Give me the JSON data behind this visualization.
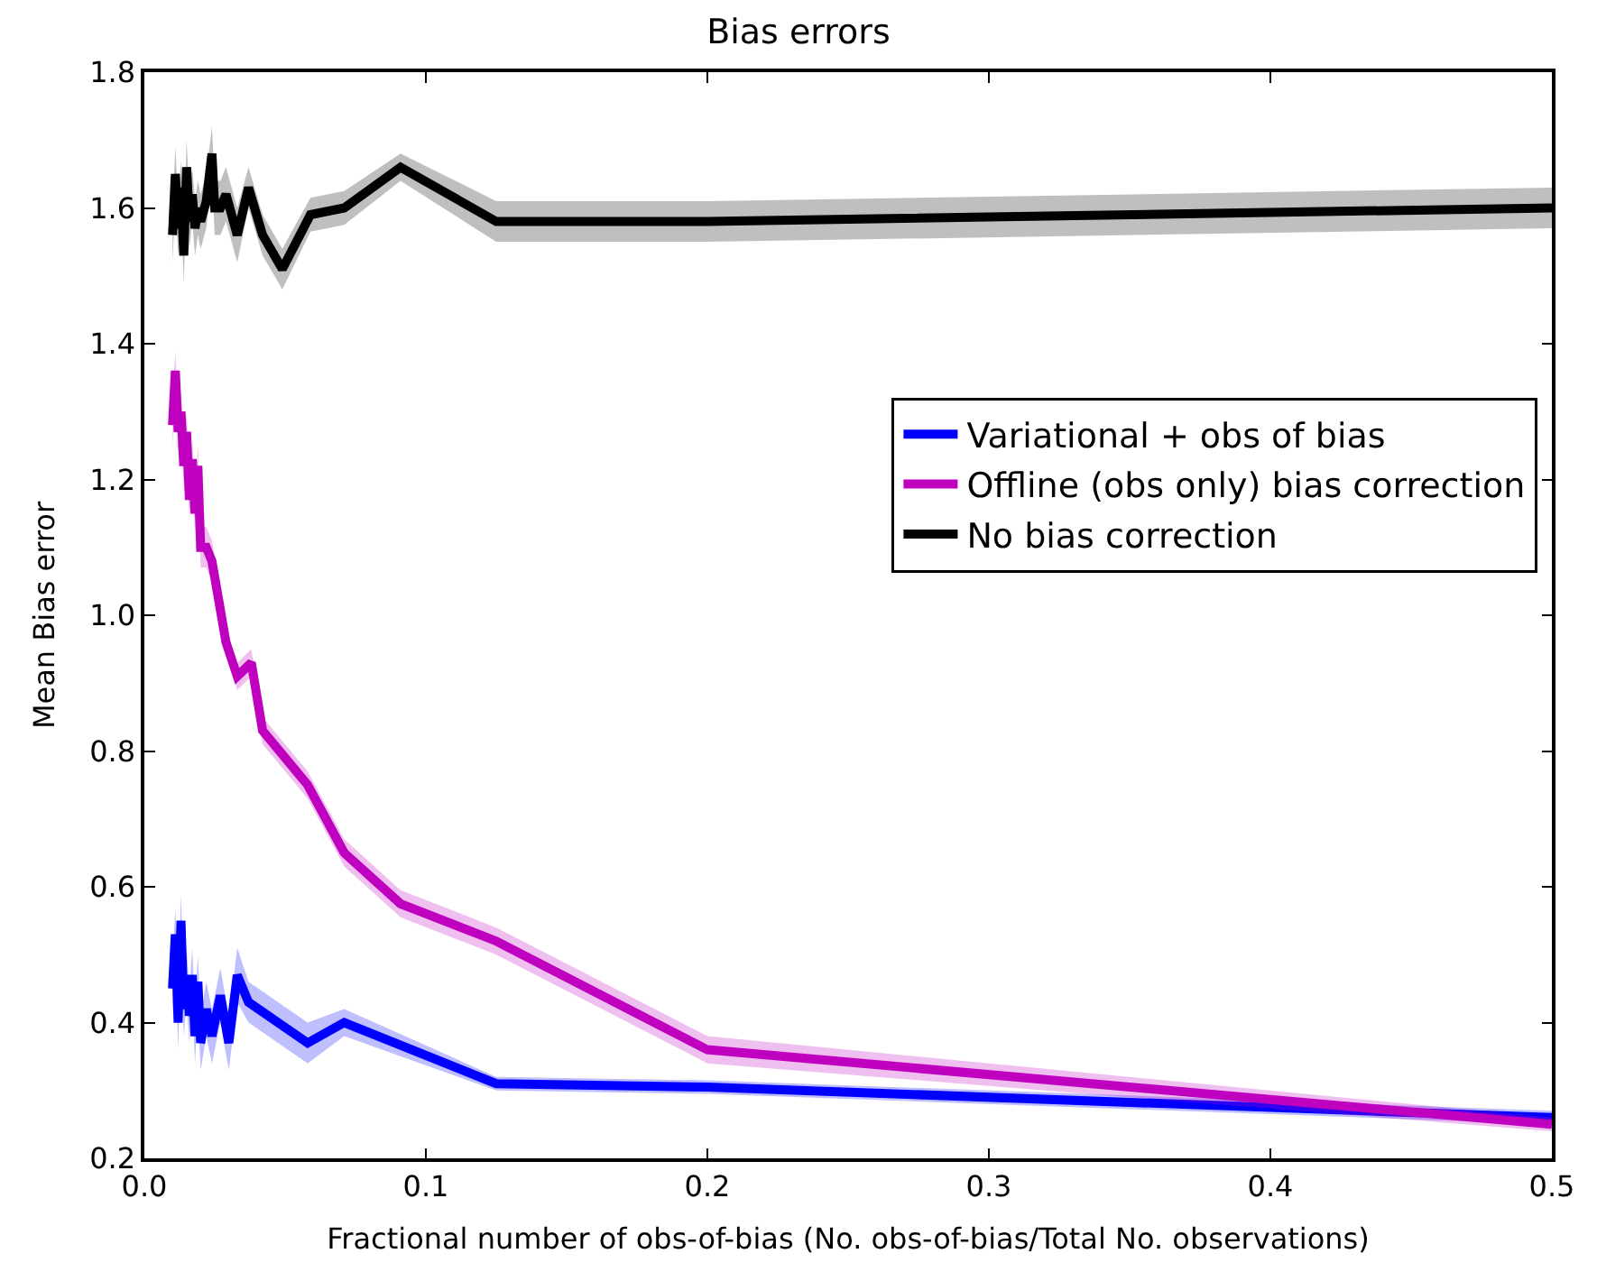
{
  "chart_data": {
    "type": "line",
    "title": "Bias errors",
    "xlabel": "Fractional number of obs-of-bias (No. obs-of-bias/Total No. observations)",
    "ylabel": "Mean Bias error",
    "xlim": [
      0,
      0.5
    ],
    "xticks": [
      {
        "value": 0,
        "label": "0.0"
      },
      {
        "value": 0.1,
        "label": "0.1"
      },
      {
        "value": 0.2,
        "label": "0.2"
      },
      {
        "value": 0.3,
        "label": "0.3"
      },
      {
        "value": 0.4,
        "label": "0.4"
      },
      {
        "value": 0.5,
        "label": "0.5"
      }
    ],
    "ylim": [
      0.2,
      1.8
    ],
    "yticks": [
      {
        "value": 0.2,
        "label": "0.2"
      },
      {
        "value": 0.4,
        "label": "0.4"
      },
      {
        "value": 0.6,
        "label": "0.6"
      },
      {
        "value": 0.8,
        "label": "0.8"
      },
      {
        "value": 1.0,
        "label": "1.0"
      },
      {
        "value": 1.2,
        "label": "1.2"
      },
      {
        "value": 1.4,
        "label": "1.4"
      },
      {
        "value": 1.6,
        "label": "1.6"
      },
      {
        "value": 1.8,
        "label": "1.8"
      }
    ],
    "legend": "right",
    "marker": "none",
    "line_style": "solid",
    "series": [
      {
        "name": "Variational + obs of bias",
        "color": "#0000ff",
        "x": [
          0.01,
          0.011,
          0.012,
          0.013,
          0.014,
          0.015,
          0.016,
          0.017,
          0.018,
          0.019,
          0.02,
          0.022,
          0.024,
          0.027,
          0.03,
          0.033,
          0.037,
          0.058,
          0.071,
          0.125,
          0.2,
          0.5
        ],
        "values": [
          0.45,
          0.53,
          0.4,
          0.55,
          0.42,
          0.47,
          0.41,
          0.47,
          0.38,
          0.46,
          0.37,
          0.42,
          0.38,
          0.44,
          0.37,
          0.47,
          0.43,
          0.37,
          0.4,
          0.31,
          0.305,
          0.26
        ],
        "lower": [
          0.41,
          0.49,
          0.36,
          0.51,
          0.38,
          0.43,
          0.37,
          0.43,
          0.34,
          0.42,
          0.33,
          0.38,
          0.34,
          0.4,
          0.33,
          0.43,
          0.4,
          0.34,
          0.38,
          0.3,
          0.295,
          0.25
        ],
        "upper": [
          0.49,
          0.57,
          0.44,
          0.59,
          0.46,
          0.51,
          0.45,
          0.51,
          0.42,
          0.5,
          0.41,
          0.46,
          0.42,
          0.48,
          0.41,
          0.51,
          0.46,
          0.4,
          0.42,
          0.32,
          0.315,
          0.27
        ]
      },
      {
        "name": "Offline (obs only) bias correction",
        "color": "#bf00bf",
        "x": [
          0.01,
          0.011,
          0.012,
          0.013,
          0.014,
          0.015,
          0.016,
          0.017,
          0.018,
          0.019,
          0.02,
          0.022,
          0.024,
          0.029,
          0.033,
          0.038,
          0.042,
          0.05,
          0.058,
          0.071,
          0.091,
          0.125,
          0.2,
          0.5
        ],
        "values": [
          1.28,
          1.36,
          1.27,
          1.3,
          1.22,
          1.27,
          1.17,
          1.23,
          1.15,
          1.22,
          1.1,
          1.1,
          1.08,
          0.96,
          0.91,
          0.93,
          0.83,
          0.79,
          0.75,
          0.65,
          0.575,
          0.52,
          0.36,
          0.25
        ],
        "lower": [
          1.25,
          1.33,
          1.24,
          1.27,
          1.19,
          1.24,
          1.14,
          1.2,
          1.12,
          1.19,
          1.07,
          1.07,
          1.05,
          0.94,
          0.89,
          0.91,
          0.81,
          0.77,
          0.73,
          0.63,
          0.555,
          0.5,
          0.34,
          0.24
        ],
        "upper": [
          1.31,
          1.39,
          1.3,
          1.33,
          1.25,
          1.3,
          1.2,
          1.26,
          1.18,
          1.25,
          1.13,
          1.13,
          1.11,
          0.98,
          0.93,
          0.95,
          0.85,
          0.81,
          0.77,
          0.67,
          0.595,
          0.54,
          0.38,
          0.26
        ]
      },
      {
        "name": "No bias correction",
        "color": "#000000",
        "x": [
          0.01,
          0.011,
          0.012,
          0.013,
          0.014,
          0.015,
          0.016,
          0.017,
          0.018,
          0.019,
          0.02,
          0.022,
          0.024,
          0.025,
          0.027,
          0.029,
          0.033,
          0.037,
          0.042,
          0.049,
          0.059,
          0.071,
          0.091,
          0.125,
          0.2,
          0.5
        ],
        "values": [
          1.56,
          1.65,
          1.57,
          1.63,
          1.53,
          1.66,
          1.58,
          1.62,
          1.57,
          1.6,
          1.58,
          1.61,
          1.68,
          1.6,
          1.6,
          1.62,
          1.56,
          1.63,
          1.56,
          1.51,
          1.59,
          1.6,
          1.66,
          1.58,
          1.58,
          1.6
        ],
        "lower": [
          1.52,
          1.61,
          1.53,
          1.59,
          1.49,
          1.62,
          1.54,
          1.58,
          1.53,
          1.56,
          1.54,
          1.57,
          1.64,
          1.56,
          1.56,
          1.58,
          1.52,
          1.6,
          1.53,
          1.48,
          1.565,
          1.575,
          1.64,
          1.55,
          1.55,
          1.57
        ],
        "upper": [
          1.6,
          1.69,
          1.61,
          1.67,
          1.57,
          1.7,
          1.62,
          1.66,
          1.61,
          1.64,
          1.62,
          1.65,
          1.72,
          1.64,
          1.64,
          1.66,
          1.6,
          1.66,
          1.59,
          1.54,
          1.615,
          1.625,
          1.68,
          1.61,
          1.61,
          1.63
        ]
      }
    ]
  }
}
